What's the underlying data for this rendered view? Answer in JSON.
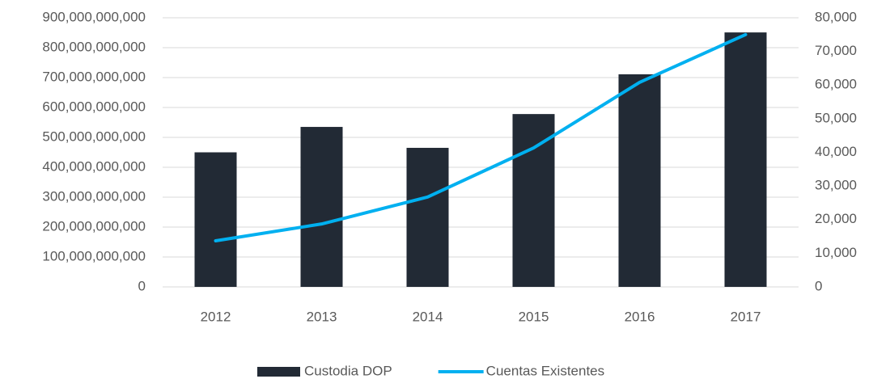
{
  "chart_data": {
    "type": "bar",
    "categories": [
      "2012",
      "2013",
      "2014",
      "2015",
      "2016",
      "2017"
    ],
    "series": [
      {
        "name": "Custodia DOP",
        "type": "bar",
        "color": "#222a35",
        "values": [
          450000000000,
          535000000000,
          465000000000,
          578000000000,
          711000000000,
          851000000000
        ]
      },
      {
        "name": "Cuentas Existentes",
        "type": "line",
        "axis": "y2",
        "color": "#00b0f0",
        "values": [
          13700,
          18700,
          26700,
          41300,
          60800,
          75000
        ]
      }
    ],
    "ylim": [
      0,
      900000000000
    ],
    "yticks": [
      0,
      {
        "value": 100000000000,
        "label": "100,000,000,000"
      },
      {
        "value": 200000000000,
        "label": "200,000,000,000"
      },
      {
        "value": 300000000000,
        "label": "300,000,000,000"
      },
      {
        "value": 400000000000,
        "label": "400,000,000,000"
      },
      {
        "value": 500000000000,
        "label": "500,000,000,000"
      },
      {
        "value": 600000000000,
        "label": "600,000,000,000"
      },
      {
        "value": 700000000000,
        "label": "700,000,000,000"
      },
      {
        "value": 800000000000,
        "label": "800,000,000,000"
      },
      {
        "value": 900000000000,
        "label": "900,000,000,000"
      }
    ],
    "y2lim": [
      0,
      80000
    ],
    "y2ticks": [
      0,
      {
        "value": 10000,
        "label": "10,000"
      },
      {
        "value": 20000,
        "label": "20,000"
      },
      {
        "value": 30000,
        "label": "30,000"
      },
      {
        "value": 40000,
        "label": "40,000"
      },
      {
        "value": 50000,
        "label": "50,000"
      },
      {
        "value": 60000,
        "label": "60,000"
      },
      {
        "value": 70000,
        "label": "70,000"
      },
      {
        "value": 80000,
        "label": "80,000"
      }
    ],
    "grid": true,
    "legend": "bottom"
  }
}
